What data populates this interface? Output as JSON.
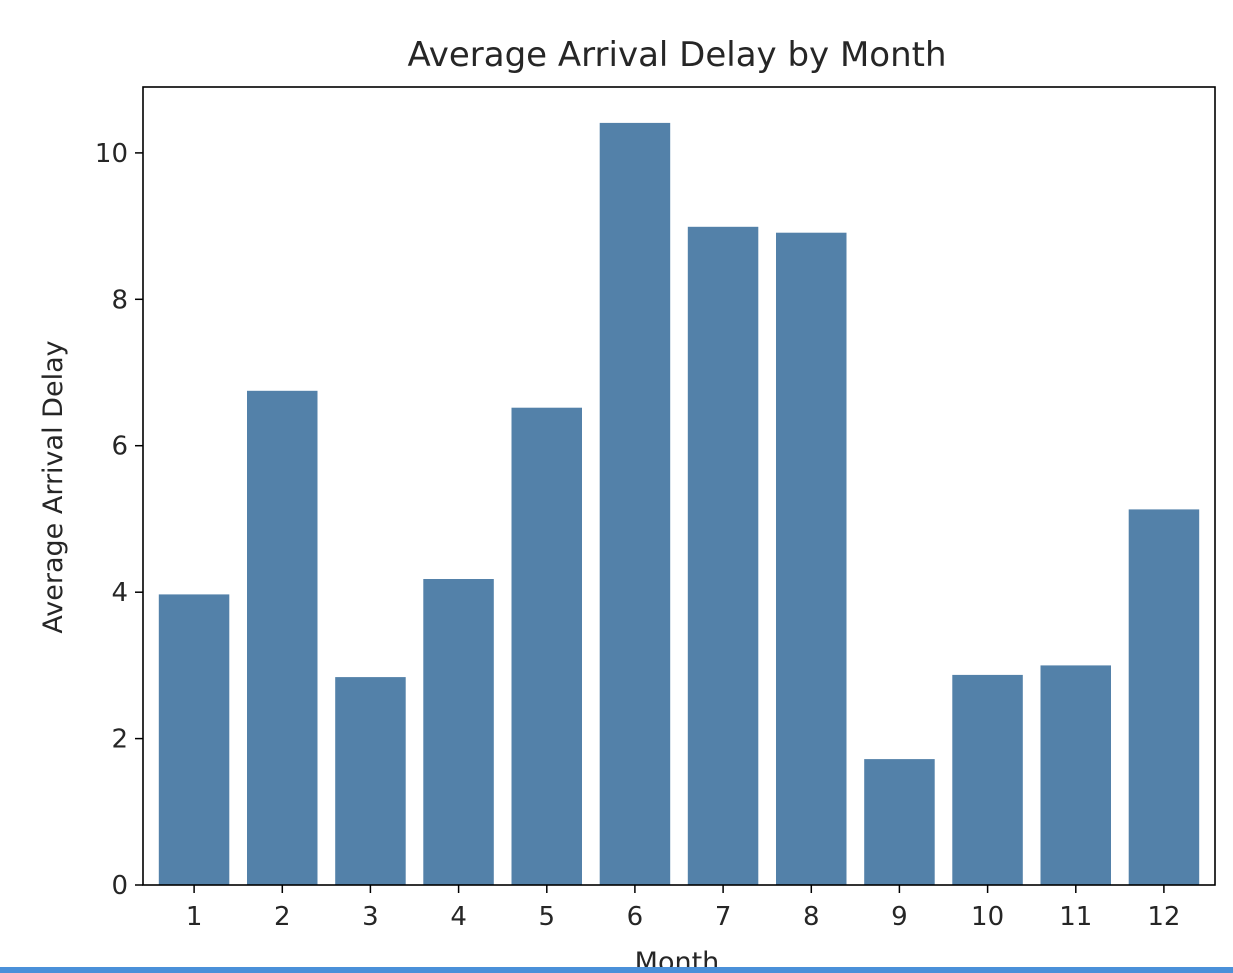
{
  "chart_data": {
    "type": "bar",
    "title": "Average Arrival Delay by Month",
    "xlabel": "Month",
    "ylabel": "Average Arrival Delay",
    "categories": [
      "1",
      "2",
      "3",
      "4",
      "5",
      "6",
      "7",
      "8",
      "9",
      "10",
      "11",
      "12"
    ],
    "values": [
      3.97,
      6.75,
      2.84,
      4.18,
      6.52,
      10.41,
      8.99,
      8.91,
      1.72,
      2.87,
      3.0,
      5.13
    ],
    "ylim": [
      0,
      10.9
    ],
    "yticks": [
      "0",
      "2",
      "4",
      "6",
      "8",
      "10"
    ],
    "bar_color": "#5381a9",
    "grid": false,
    "legend": "none"
  }
}
